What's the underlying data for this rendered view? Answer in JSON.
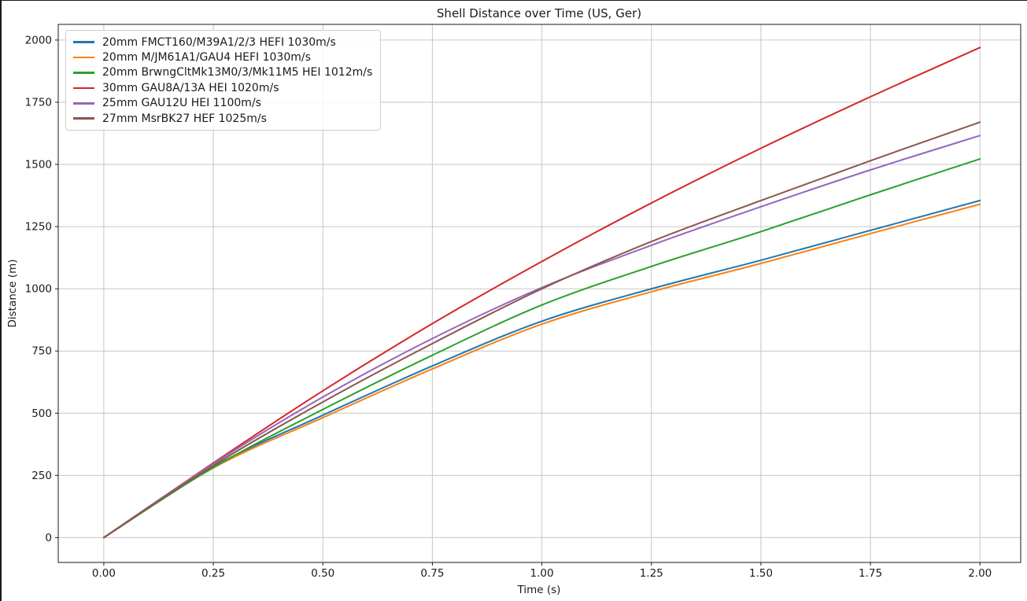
{
  "chart_data": {
    "type": "line",
    "title": "Shell Distance over Time (US, Ger)",
    "xlabel": "Time (s)",
    "ylabel": "Distance (m)",
    "xlim": [
      -0.104,
      2.093
    ],
    "ylim": [
      -100,
      2063
    ],
    "xticks": [
      0,
      0.25,
      0.5,
      0.75,
      1.0,
      1.25,
      1.5,
      1.75,
      2.0
    ],
    "xtick_labels": [
      "0.00",
      "0.25",
      "0.50",
      "0.75",
      "1.00",
      "1.25",
      "1.50",
      "1.75",
      "2.00"
    ],
    "yticks": [
      0,
      250,
      500,
      750,
      1000,
      1250,
      1500,
      1750,
      2000
    ],
    "ytick_labels": [
      "0",
      "250",
      "500",
      "750",
      "1000",
      "1250",
      "1500",
      "1750",
      "2000"
    ],
    "grid": true,
    "grid_color": "#c6c6c6",
    "spine_color": "#1a1a1a",
    "legend_position": "upper left",
    "x": [
      0,
      0.25,
      0.5,
      0.75,
      1.0,
      1.25,
      1.5,
      1.75,
      2.0
    ],
    "series": [
      {
        "name": "20mm FMCT160/M39A1/2/3 HEFI 1030m/s",
        "color": "#1f77b4",
        "values": [
          0,
          285,
          492,
          690,
          870,
          1000,
          1115,
          1235,
          1355
        ]
      },
      {
        "name": "20mm M/JM61A1/GAU4 HEFI 1030m/s",
        "color": "#ff7f0e",
        "values": [
          0,
          280,
          482,
          678,
          858,
          988,
          1102,
          1222,
          1340
        ]
      },
      {
        "name": "20mm BrwngCltMk13M0/3/Mk11M5 HEI 1012m/s",
        "color": "#2ca02c",
        "values": [
          0,
          282,
          515,
          733,
          935,
          1090,
          1230,
          1378,
          1522
        ]
      },
      {
        "name": "30mm GAU8A/13A HEI 1020m/s",
        "color": "#d62728",
        "values": [
          0,
          300,
          590,
          860,
          1110,
          1345,
          1565,
          1772,
          1970
        ]
      },
      {
        "name": "25mm GAU12U HEI 1100m/s",
        "color": "#9467bd",
        "values": [
          0,
          297,
          565,
          800,
          1005,
          1175,
          1330,
          1478,
          1616
        ]
      },
      {
        "name": "27mm MsrBK27 HEF 1025m/s",
        "color": "#8c564b",
        "values": [
          0,
          290,
          545,
          780,
          1000,
          1190,
          1355,
          1515,
          1670
        ]
      }
    ]
  }
}
